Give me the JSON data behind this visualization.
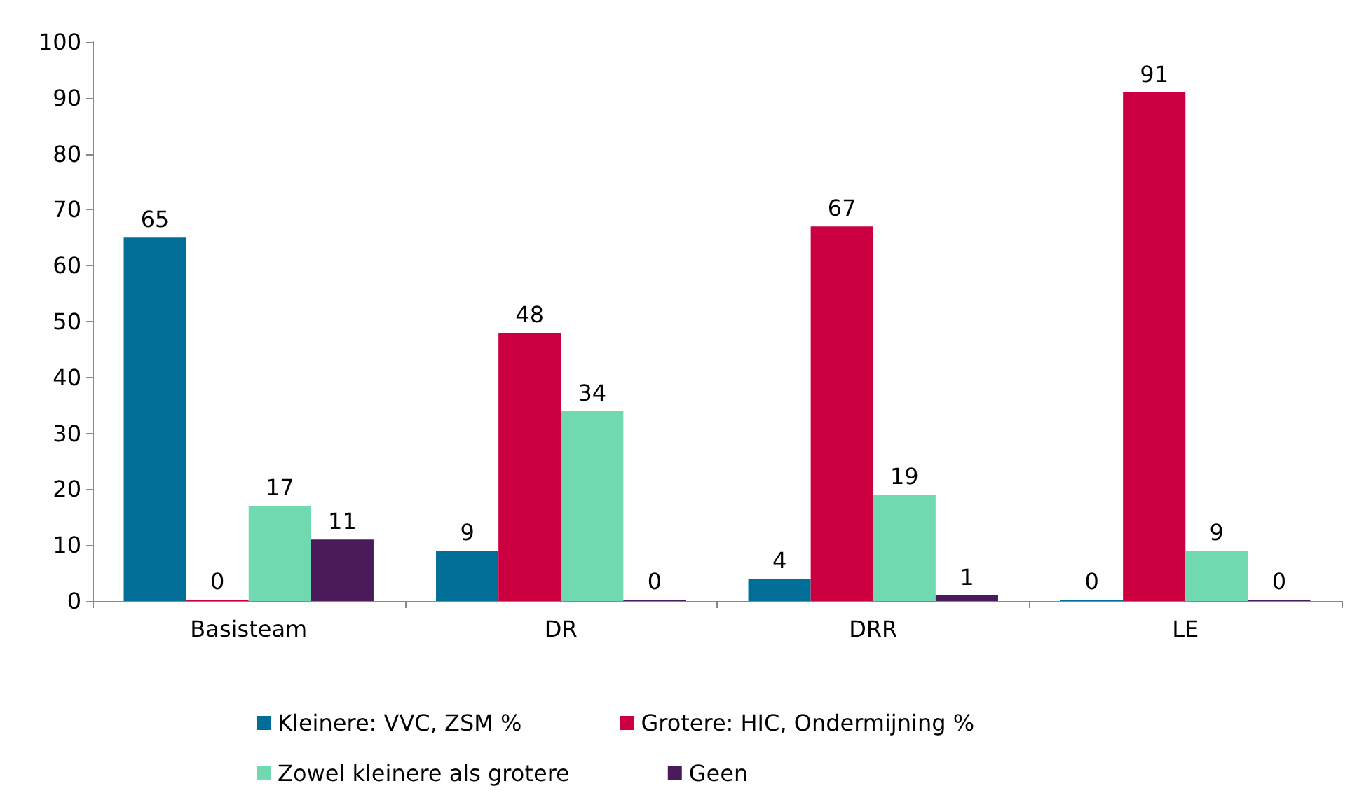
{
  "chart_data": {
    "type": "bar",
    "categories": [
      "Basisteam",
      "DR",
      "DRR",
      "LE"
    ],
    "series": [
      {
        "name": "Kleinere: VVC, ZSM %",
        "color": "#006e96",
        "values": [
          65,
          9,
          4,
          0
        ]
      },
      {
        "name": "Grotere: HIC, Ondermijning %",
        "color": "#cc0040",
        "values": [
          0,
          48,
          67,
          91
        ]
      },
      {
        "name": "Zowel kleinere als grotere",
        "color": "#70d9b0",
        "values": [
          17,
          34,
          19,
          9
        ]
      },
      {
        "name": "Geen",
        "color": "#4a1a5a",
        "values": [
          11,
          0,
          1,
          0
        ]
      }
    ],
    "ylim": [
      0,
      100
    ],
    "yticks": [
      0,
      10,
      20,
      30,
      40,
      50,
      60,
      70,
      80,
      90,
      100
    ],
    "grid": false,
    "legend": "bottom",
    "data_labels": true
  }
}
